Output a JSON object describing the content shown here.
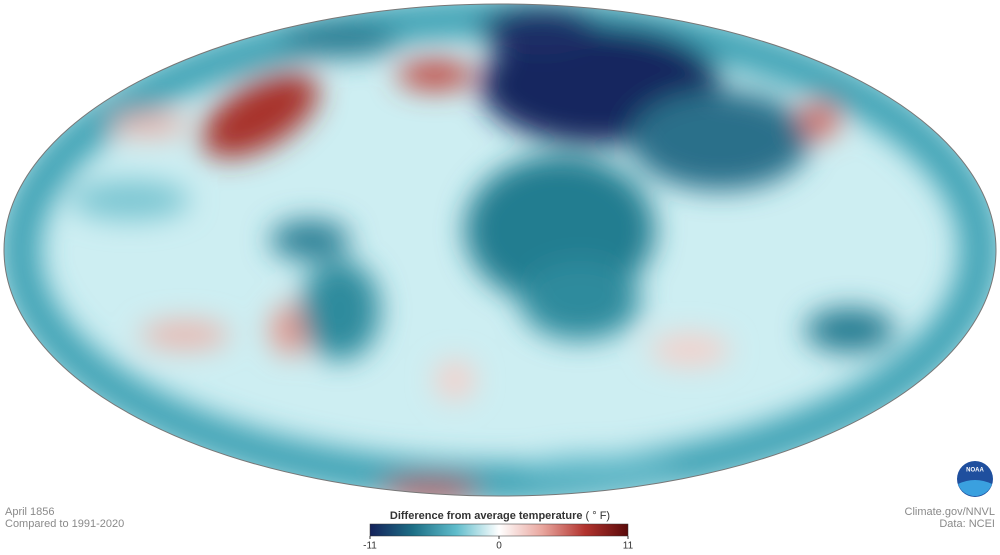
{
  "map": {
    "date": "April 1856",
    "baseline": "Compared to 1991-2020",
    "credit": "Climate.gov/NNVL",
    "source": "Data: NCEI",
    "logo": "NOAA"
  },
  "colorbar": {
    "title": "Difference from average temperature",
    "unit": "( ° F)",
    "lim": [
      -11,
      11
    ],
    "ticks": [
      -11,
      0,
      11
    ],
    "colors": [
      "#14215a",
      "#1d6f86",
      "#5fbccb",
      "#ffffff",
      "#e9a79f",
      "#b2332e",
      "#5a0a0a"
    ]
  }
}
